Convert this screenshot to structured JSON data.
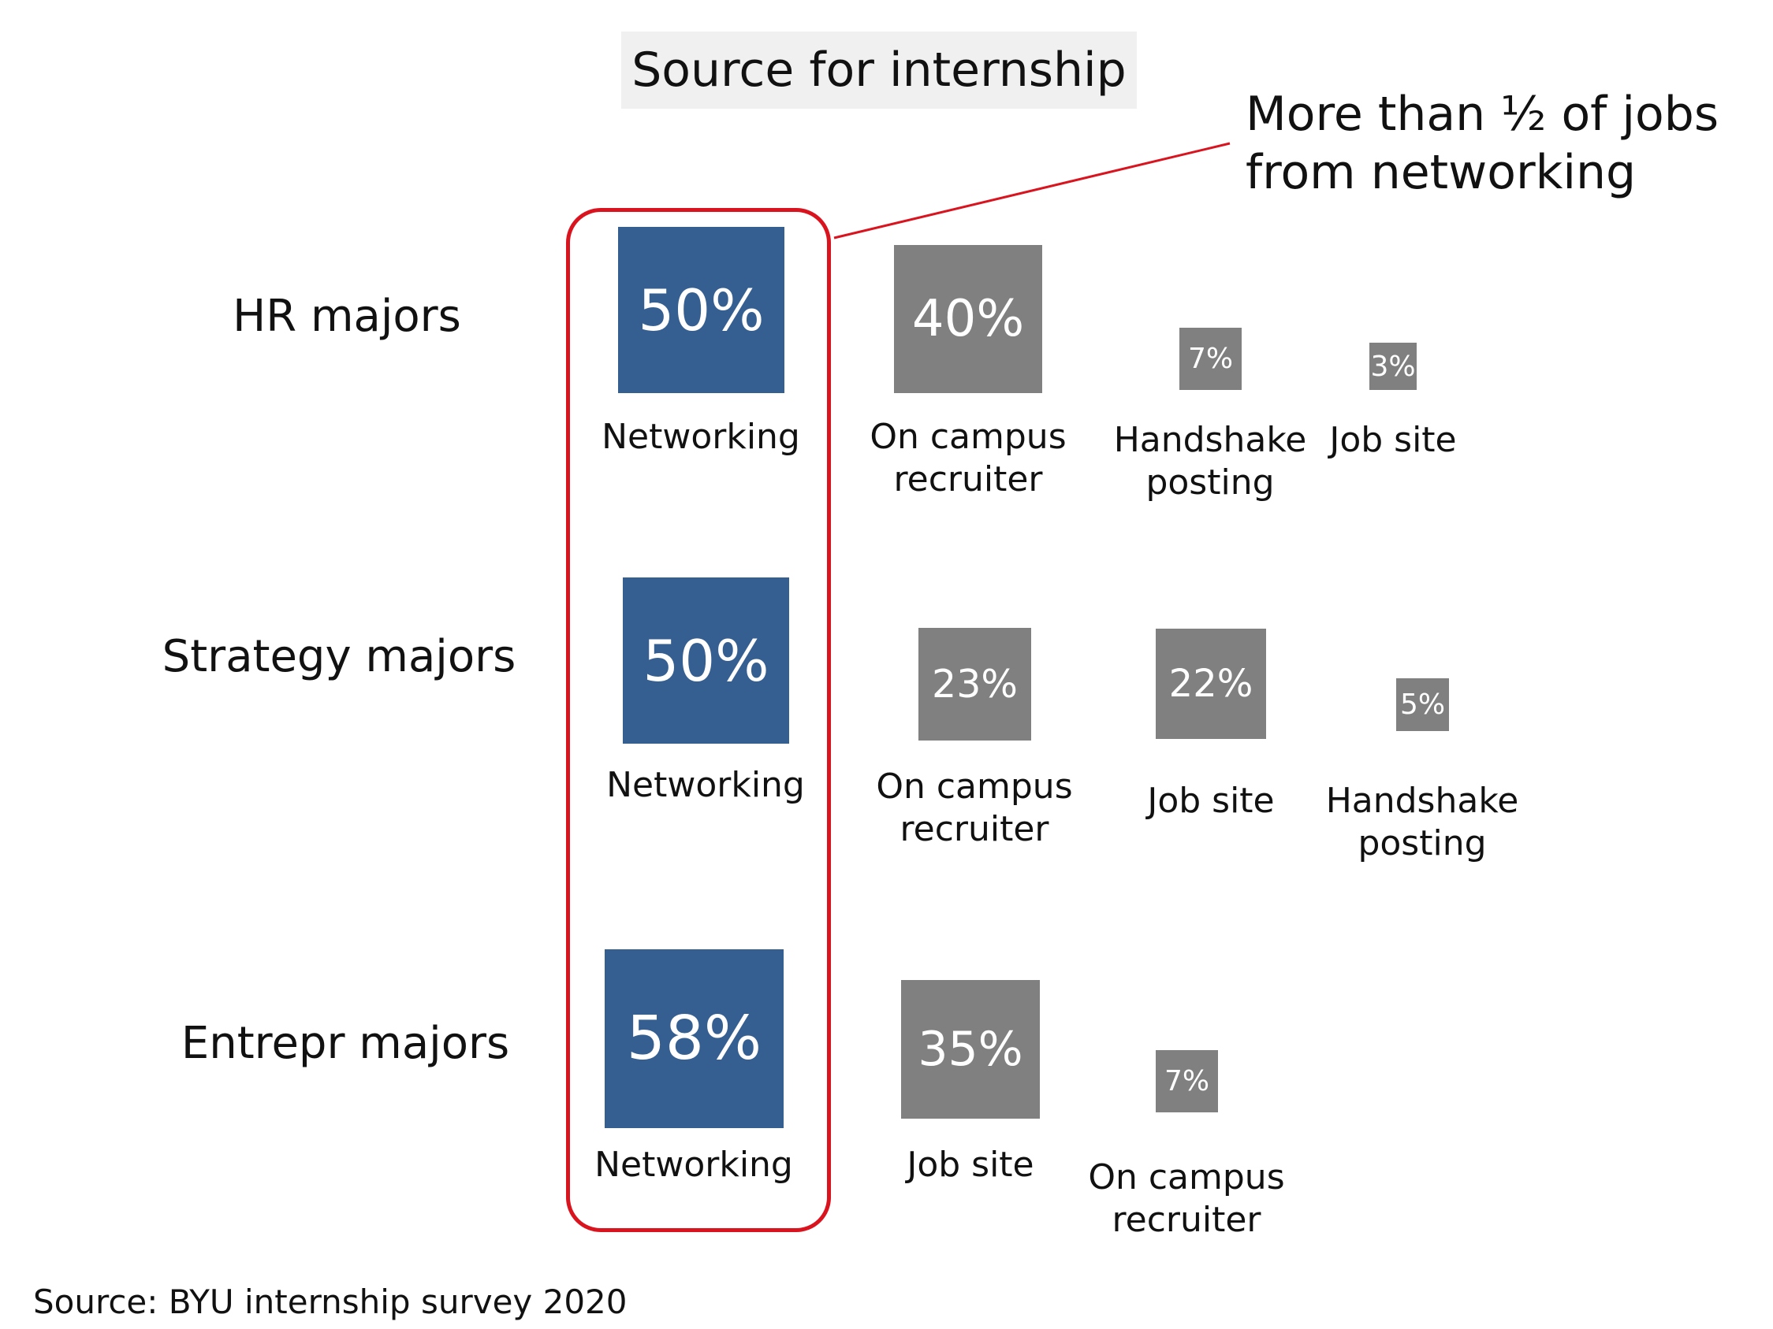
{
  "title": "Source for internship",
  "callout": "More than ½ of jobs from networking",
  "source": "Source:  BYU internship survey 2020",
  "colors": {
    "networking": "#365f91",
    "other": "#808080",
    "highlight": "#d9141f"
  },
  "chart_data": {
    "type": "table",
    "title": "Source for internship",
    "unit": "%",
    "rows": [
      {
        "label": "HR majors",
        "items": [
          {
            "category": "Networking",
            "value": 50,
            "display": "50%"
          },
          {
            "category": "On campus\nrecruiter",
            "value": 40,
            "display": "40%"
          },
          {
            "category": "Handshake\nposting",
            "value": 7,
            "display": "7%"
          },
          {
            "category": "Job site",
            "value": 3,
            "display": "3%"
          }
        ]
      },
      {
        "label": "Strategy majors",
        "items": [
          {
            "category": "Networking",
            "value": 50,
            "display": "50%"
          },
          {
            "category": "On campus\nrecruiter",
            "value": 23,
            "display": "23%"
          },
          {
            "category": "Job site",
            "value": 22,
            "display": "22%"
          },
          {
            "category": "Handshake\nposting",
            "value": 5,
            "display": "5%"
          }
        ]
      },
      {
        "label": "Entrepr majors",
        "items": [
          {
            "category": "Networking",
            "value": 58,
            "display": "58%"
          },
          {
            "category": "Job site",
            "value": 35,
            "display": "35%"
          },
          {
            "category": "On campus\nrecruiter",
            "value": 7,
            "display": "7%"
          }
        ]
      }
    ]
  }
}
